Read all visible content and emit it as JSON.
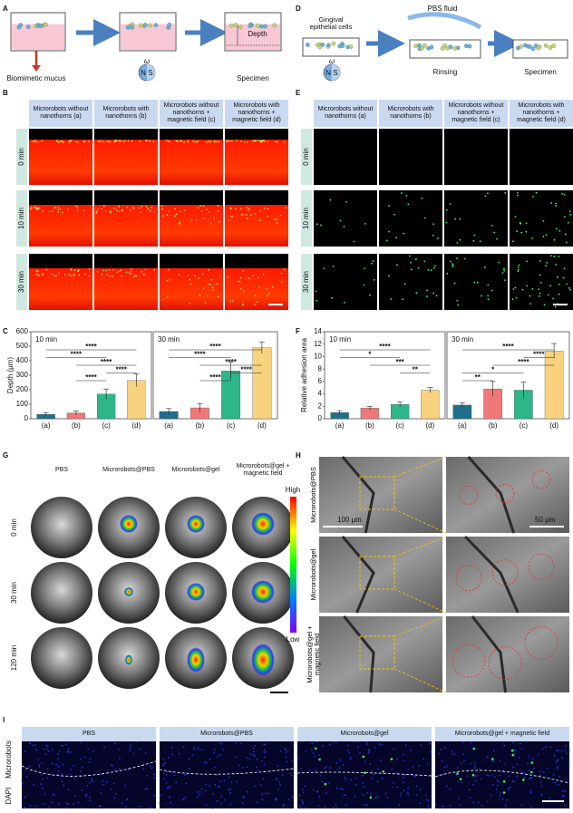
{
  "panel_labels": [
    "A",
    "B",
    "C",
    "D",
    "E",
    "F",
    "G",
    "H",
    "I"
  ],
  "schematic_a": {
    "mucus": "Biomimetic mucus",
    "depth": "Depth",
    "specimen": "Specimen",
    "magnet": [
      "N",
      "S"
    ],
    "omega": "ω"
  },
  "schematic_d": {
    "cells": "Gingival epithelial cells",
    "fluid": "PBS fluid",
    "rinsing": "Rinsing",
    "specimen": "Specimen",
    "magnet": [
      "N",
      "S"
    ],
    "omega": "ω"
  },
  "imaging_b": {
    "columns": [
      "Microrobots without nanothorns (a)",
      "Microrobots with nanothorns (b)",
      "Microrobots without nanothorns + magnetic field (c)",
      "Microrobots with nanothorns + magnetic field (d)"
    ],
    "rows": [
      "0 min",
      "10 min",
      "30 min"
    ]
  },
  "imaging_e": {
    "columns": [
      "Microrobots without nanothorns (a)",
      "Microrobots with nanothorns (b)",
      "Microrobots without nanothorns + magnetic field (c)",
      "Microrobots with nanothorns + magnetic field (d)"
    ],
    "rows": [
      "0 min",
      "10 min",
      "30 min"
    ]
  },
  "chart_data": [
    {
      "type": "bar",
      "title": "10 min",
      "ylabel": "Depth (μm)",
      "categories": [
        "(a)",
        "(b)",
        "(c)",
        "(d)"
      ],
      "values": [
        30,
        40,
        170,
        265
      ],
      "errors": [
        12,
        15,
        35,
        45
      ],
      "colors": [
        "#1f6e8c",
        "#f07878",
        "#2fb58a",
        "#f8d27e"
      ],
      "ylim": [
        0,
        600
      ],
      "yticks": [
        0,
        100,
        200,
        300,
        400,
        500,
        600
      ],
      "annotations": [
        {
          "text": "****",
          "between": [
            "(a)",
            "(d)"
          ]
        },
        {
          "text": "****",
          "between": [
            "(a)",
            "(c)"
          ]
        },
        {
          "text": "****",
          "between": [
            "(b)",
            "(d)"
          ]
        },
        {
          "text": "****",
          "between": [
            "(c)",
            "(d)"
          ]
        },
        {
          "text": "****",
          "between": [
            "(b)",
            "(c)"
          ]
        }
      ]
    },
    {
      "type": "bar",
      "title": "30 min",
      "categories": [
        "(a)",
        "(b)",
        "(c)",
        "(d)"
      ],
      "values": [
        50,
        75,
        330,
        490
      ],
      "errors": [
        20,
        30,
        60,
        40
      ],
      "colors": [
        "#1f6e8c",
        "#f07878",
        "#2fb58a",
        "#f8d27e"
      ],
      "ylim": [
        0,
        600
      ],
      "annotations": [
        {
          "text": "****",
          "between": [
            "(a)",
            "(d)"
          ]
        },
        {
          "text": "****",
          "between": [
            "(a)",
            "(c)"
          ]
        },
        {
          "text": "****",
          "between": [
            "(b)",
            "(d)"
          ]
        },
        {
          "text": "****",
          "between": [
            "(c)",
            "(d)"
          ]
        },
        {
          "text": "****",
          "between": [
            "(b)",
            "(c)"
          ]
        }
      ]
    },
    {
      "type": "bar",
      "title": "10 min",
      "ylabel": "Relative adhesion area",
      "categories": [
        "(a)",
        "(b)",
        "(c)",
        "(d)"
      ],
      "values": [
        1.0,
        1.7,
        2.3,
        4.6
      ],
      "errors": [
        0.3,
        0.3,
        0.4,
        0.4
      ],
      "colors": [
        "#1f6e8c",
        "#f07878",
        "#2fb58a",
        "#f8d27e"
      ],
      "ylim": [
        0,
        14
      ],
      "yticks": [
        0,
        2,
        4,
        6,
        8,
        10,
        12,
        14
      ],
      "annotations": [
        {
          "text": "****",
          "between": [
            "(a)",
            "(d)"
          ]
        },
        {
          "text": "*",
          "between": [
            "(a)",
            "(c)"
          ]
        },
        {
          "text": "***",
          "between": [
            "(b)",
            "(d)"
          ]
        },
        {
          "text": "**",
          "between": [
            "(c)",
            "(d)"
          ]
        }
      ]
    },
    {
      "type": "bar",
      "title": "30 min",
      "categories": [
        "(a)",
        "(b)",
        "(c)",
        "(d)"
      ],
      "values": [
        2.2,
        4.8,
        4.6,
        10.9
      ],
      "errors": [
        0.4,
        1.2,
        1.3,
        1.2
      ],
      "colors": [
        "#1f6e8c",
        "#f07878",
        "#2fb58a",
        "#f8d27e"
      ],
      "ylim": [
        0,
        14
      ],
      "annotations": [
        {
          "text": "****",
          "between": [
            "(a)",
            "(d)"
          ]
        },
        {
          "text": "****",
          "between": [
            "(c)",
            "(d)"
          ]
        },
        {
          "text": "****",
          "between": [
            "(b)",
            "(d)"
          ]
        },
        {
          "text": "*",
          "between": [
            "(a)",
            "(c)"
          ]
        },
        {
          "text": "**",
          "between": [
            "(a)",
            "(b)"
          ]
        }
      ]
    }
  ],
  "imaging_g": {
    "columns": [
      "PBS",
      "Microrobots@PBS",
      "Microrobots@gel",
      "Microrobots@gel + magnetic field"
    ],
    "rows": [
      "0 min",
      "30 min",
      "120 min"
    ],
    "colorbar": [
      "High",
      "Low"
    ]
  },
  "imaging_h": {
    "rows": [
      "Microrobots@PBS",
      "Microrobots@gel",
      "Microrobots@gel + magnetic field"
    ],
    "scale_bars": [
      "100 μm",
      "50 μm"
    ]
  },
  "imaging_i": {
    "columns": [
      "PBS",
      "Microrobots@PBS",
      "Microrobots@gel",
      "Microrobots@gel + magnetic field"
    ],
    "stains": [
      "DAPI",
      "Microrobots"
    ]
  }
}
